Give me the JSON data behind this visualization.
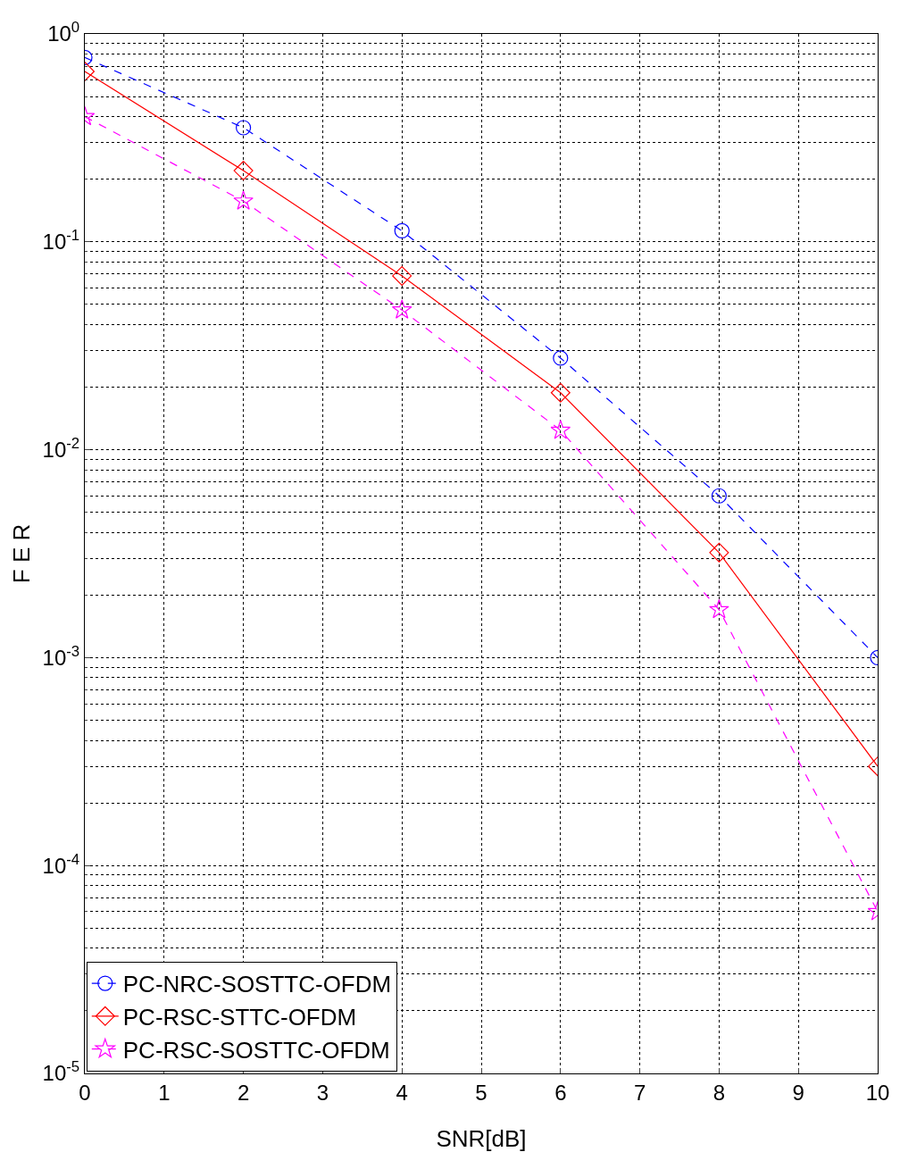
{
  "chart_data": {
    "type": "line",
    "xlabel": "SNR[dB]",
    "ylabel": "F E R",
    "x": [
      0,
      2,
      4,
      6,
      8,
      10
    ],
    "series": [
      {
        "name": "PC-NRC-SOSTTC-OFDM",
        "color": "#0000ff",
        "values": [
          0.77,
          0.354,
          0.113,
          0.0276,
          0.006,
          0.001
        ],
        "marker": "circle",
        "line_style": "dashed"
      },
      {
        "name": "PC-RSC-STTC-OFDM",
        "color": "#ff0000",
        "values": [
          0.66,
          0.22,
          0.0686,
          0.0188,
          0.0032,
          0.0003
        ],
        "marker": "diamond",
        "line_style": "solid"
      },
      {
        "name": "PC-RSC-SOSTTC-OFDM",
        "color": "#ff00ff",
        "values": [
          0.4,
          0.157,
          0.047,
          0.0124,
          0.0017,
          6e-05
        ],
        "marker": "star",
        "line_style": "dashed"
      }
    ],
    "log": "y",
    "xlim": [
      0,
      10
    ],
    "xticks": [
      0,
      1,
      2,
      3,
      4,
      5,
      6,
      7,
      8,
      9,
      10
    ],
    "ylim": [
      1e-05,
      1
    ],
    "yticks": [
      {
        "value": 1e-05,
        "label": "10$^{-5}$"
      },
      {
        "value": 0.0001,
        "label": "10$^{-4}$"
      },
      {
        "value": 0.001,
        "label": "10$^{-3}$"
      },
      {
        "value": 0.01,
        "label": "10$^{-2}$"
      },
      {
        "value": 0.1,
        "label": "10$^{-1}$"
      },
      {
        "value": 1,
        "label": "10$^{0}$"
      }
    ],
    "grid": true,
    "legend": "bottom left"
  }
}
